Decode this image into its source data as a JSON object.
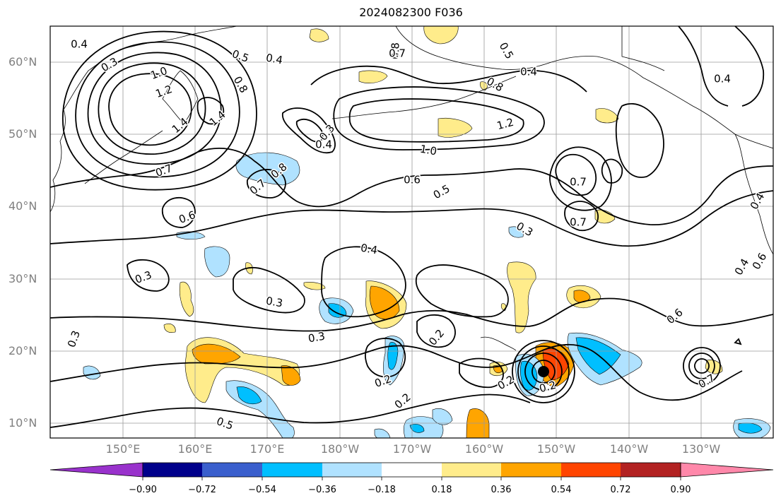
{
  "title": "2024082300 F036",
  "map": {
    "projection": "PlateCarree",
    "lon_range": [
      140,
      240
    ],
    "lat_range": [
      8,
      65
    ],
    "lat_ticks": [
      "60°N",
      "50°N",
      "40°N",
      "30°N",
      "20°N",
      "10°N"
    ],
    "lon_ticks": [
      "150°E",
      "160°E",
      "170°E",
      "180°W",
      "170°W",
      "160°W",
      "150°W",
      "140°W",
      "130°W"
    ],
    "gridlines": true,
    "contour_labels": [
      "0.4",
      "0.3",
      "0.5",
      "0.4",
      "1.0",
      "1.2",
      "0.8",
      "1.4",
      "1.4",
      "0.7",
      "0.8",
      "0.7",
      "0.3",
      "0.4",
      "0.8",
      "0.7",
      "0.5",
      "0.4",
      "0.8",
      "1.2",
      "1.0",
      "0.6",
      "0.5",
      "0.7",
      "0.7",
      "0.6",
      "0.4",
      "0.4",
      "0.3",
      "0.3",
      "0.3",
      "0.3",
      "0.2",
      "0.2",
      "0.2",
      "0.2",
      "0.2",
      "0.5",
      "0.6",
      "0.7",
      "0.6",
      "0.4",
      "0.3",
      "0.4"
    ]
  },
  "colorbar": {
    "ticks": [
      "−0.90",
      "−0.72",
      "−0.54",
      "−0.36",
      "−0.18",
      "0.18",
      "0.36",
      "0.54",
      "0.72",
      "0.90"
    ],
    "colors": [
      "#9932cc",
      "#00008b",
      "#3a5fcd",
      "#00bfff",
      "#b0e2ff",
      "#ffffff",
      "#ffec8b",
      "#ffa500",
      "#ff4500",
      "#b22222",
      "#ff88aa"
    ],
    "extend": "both"
  }
}
